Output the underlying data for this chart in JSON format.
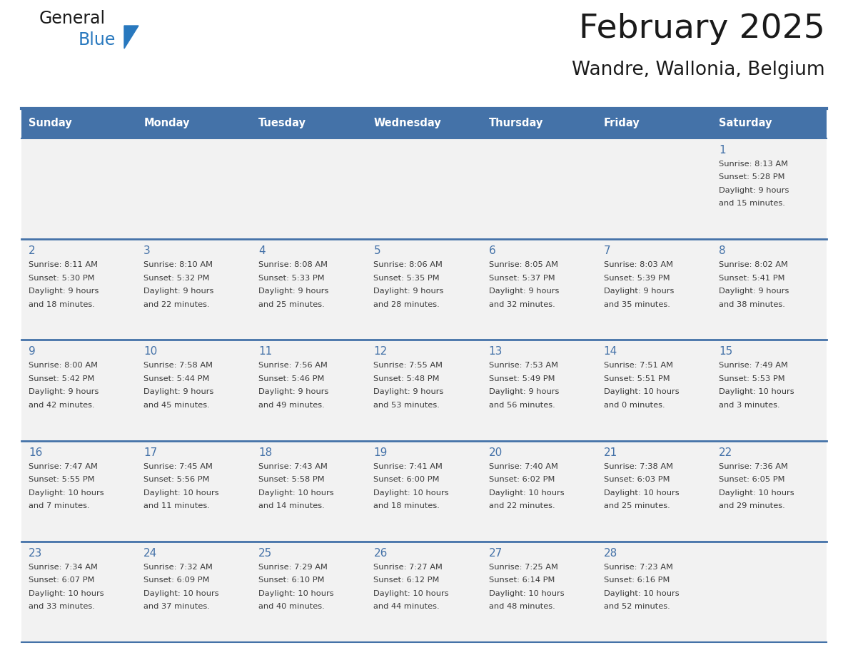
{
  "title": "February 2025",
  "subtitle": "Wandre, Wallonia, Belgium",
  "days_of_week": [
    "Sunday",
    "Monday",
    "Tuesday",
    "Wednesday",
    "Thursday",
    "Friday",
    "Saturday"
  ],
  "header_bg_color": "#4472a8",
  "header_text_color": "#ffffff",
  "cell_bg_odd": "#f2f2f2",
  "cell_bg_even": "#ffffff",
  "grid_line_color": "#4472a8",
  "day_number_color": "#4472a8",
  "info_text_color": "#3a3a3a",
  "title_color": "#1a1a1a",
  "subtitle_color": "#1a1a1a",
  "logo_color_general": "#1a1a1a",
  "logo_color_blue": "#2878be",
  "logo_triangle_color": "#2878be",
  "calendar_data": [
    {
      "day": 1,
      "col": 6,
      "row": 0,
      "sunrise": "8:13 AM",
      "sunset": "5:28 PM",
      "daylight_h": "9 hours",
      "daylight_m": "and 15 minutes."
    },
    {
      "day": 2,
      "col": 0,
      "row": 1,
      "sunrise": "8:11 AM",
      "sunset": "5:30 PM",
      "daylight_h": "9 hours",
      "daylight_m": "and 18 minutes."
    },
    {
      "day": 3,
      "col": 1,
      "row": 1,
      "sunrise": "8:10 AM",
      "sunset": "5:32 PM",
      "daylight_h": "9 hours",
      "daylight_m": "and 22 minutes."
    },
    {
      "day": 4,
      "col": 2,
      "row": 1,
      "sunrise": "8:08 AM",
      "sunset": "5:33 PM",
      "daylight_h": "9 hours",
      "daylight_m": "and 25 minutes."
    },
    {
      "day": 5,
      "col": 3,
      "row": 1,
      "sunrise": "8:06 AM",
      "sunset": "5:35 PM",
      "daylight_h": "9 hours",
      "daylight_m": "and 28 minutes."
    },
    {
      "day": 6,
      "col": 4,
      "row": 1,
      "sunrise": "8:05 AM",
      "sunset": "5:37 PM",
      "daylight_h": "9 hours",
      "daylight_m": "and 32 minutes."
    },
    {
      "day": 7,
      "col": 5,
      "row": 1,
      "sunrise": "8:03 AM",
      "sunset": "5:39 PM",
      "daylight_h": "9 hours",
      "daylight_m": "and 35 minutes."
    },
    {
      "day": 8,
      "col": 6,
      "row": 1,
      "sunrise": "8:02 AM",
      "sunset": "5:41 PM",
      "daylight_h": "9 hours",
      "daylight_m": "and 38 minutes."
    },
    {
      "day": 9,
      "col": 0,
      "row": 2,
      "sunrise": "8:00 AM",
      "sunset": "5:42 PM",
      "daylight_h": "9 hours",
      "daylight_m": "and 42 minutes."
    },
    {
      "day": 10,
      "col": 1,
      "row": 2,
      "sunrise": "7:58 AM",
      "sunset": "5:44 PM",
      "daylight_h": "9 hours",
      "daylight_m": "and 45 minutes."
    },
    {
      "day": 11,
      "col": 2,
      "row": 2,
      "sunrise": "7:56 AM",
      "sunset": "5:46 PM",
      "daylight_h": "9 hours",
      "daylight_m": "and 49 minutes."
    },
    {
      "day": 12,
      "col": 3,
      "row": 2,
      "sunrise": "7:55 AM",
      "sunset": "5:48 PM",
      "daylight_h": "9 hours",
      "daylight_m": "and 53 minutes."
    },
    {
      "day": 13,
      "col": 4,
      "row": 2,
      "sunrise": "7:53 AM",
      "sunset": "5:49 PM",
      "daylight_h": "9 hours",
      "daylight_m": "and 56 minutes."
    },
    {
      "day": 14,
      "col": 5,
      "row": 2,
      "sunrise": "7:51 AM",
      "sunset": "5:51 PM",
      "daylight_h": "10 hours",
      "daylight_m": "and 0 minutes."
    },
    {
      "day": 15,
      "col": 6,
      "row": 2,
      "sunrise": "7:49 AM",
      "sunset": "5:53 PM",
      "daylight_h": "10 hours",
      "daylight_m": "and 3 minutes."
    },
    {
      "day": 16,
      "col": 0,
      "row": 3,
      "sunrise": "7:47 AM",
      "sunset": "5:55 PM",
      "daylight_h": "10 hours",
      "daylight_m": "and 7 minutes."
    },
    {
      "day": 17,
      "col": 1,
      "row": 3,
      "sunrise": "7:45 AM",
      "sunset": "5:56 PM",
      "daylight_h": "10 hours",
      "daylight_m": "and 11 minutes."
    },
    {
      "day": 18,
      "col": 2,
      "row": 3,
      "sunrise": "7:43 AM",
      "sunset": "5:58 PM",
      "daylight_h": "10 hours",
      "daylight_m": "and 14 minutes."
    },
    {
      "day": 19,
      "col": 3,
      "row": 3,
      "sunrise": "7:41 AM",
      "sunset": "6:00 PM",
      "daylight_h": "10 hours",
      "daylight_m": "and 18 minutes."
    },
    {
      "day": 20,
      "col": 4,
      "row": 3,
      "sunrise": "7:40 AM",
      "sunset": "6:02 PM",
      "daylight_h": "10 hours",
      "daylight_m": "and 22 minutes."
    },
    {
      "day": 21,
      "col": 5,
      "row": 3,
      "sunrise": "7:38 AM",
      "sunset": "6:03 PM",
      "daylight_h": "10 hours",
      "daylight_m": "and 25 minutes."
    },
    {
      "day": 22,
      "col": 6,
      "row": 3,
      "sunrise": "7:36 AM",
      "sunset": "6:05 PM",
      "daylight_h": "10 hours",
      "daylight_m": "and 29 minutes."
    },
    {
      "day": 23,
      "col": 0,
      "row": 4,
      "sunrise": "7:34 AM",
      "sunset": "6:07 PM",
      "daylight_h": "10 hours",
      "daylight_m": "and 33 minutes."
    },
    {
      "day": 24,
      "col": 1,
      "row": 4,
      "sunrise": "7:32 AM",
      "sunset": "6:09 PM",
      "daylight_h": "10 hours",
      "daylight_m": "and 37 minutes."
    },
    {
      "day": 25,
      "col": 2,
      "row": 4,
      "sunrise": "7:29 AM",
      "sunset": "6:10 PM",
      "daylight_h": "10 hours",
      "daylight_m": "and 40 minutes."
    },
    {
      "day": 26,
      "col": 3,
      "row": 4,
      "sunrise": "7:27 AM",
      "sunset": "6:12 PM",
      "daylight_h": "10 hours",
      "daylight_m": "and 44 minutes."
    },
    {
      "day": 27,
      "col": 4,
      "row": 4,
      "sunrise": "7:25 AM",
      "sunset": "6:14 PM",
      "daylight_h": "10 hours",
      "daylight_m": "and 48 minutes."
    },
    {
      "day": 28,
      "col": 5,
      "row": 4,
      "sunrise": "7:23 AM",
      "sunset": "6:16 PM",
      "daylight_h": "10 hours",
      "daylight_m": "and 52 minutes."
    }
  ],
  "num_rows": 5,
  "num_cols": 7
}
